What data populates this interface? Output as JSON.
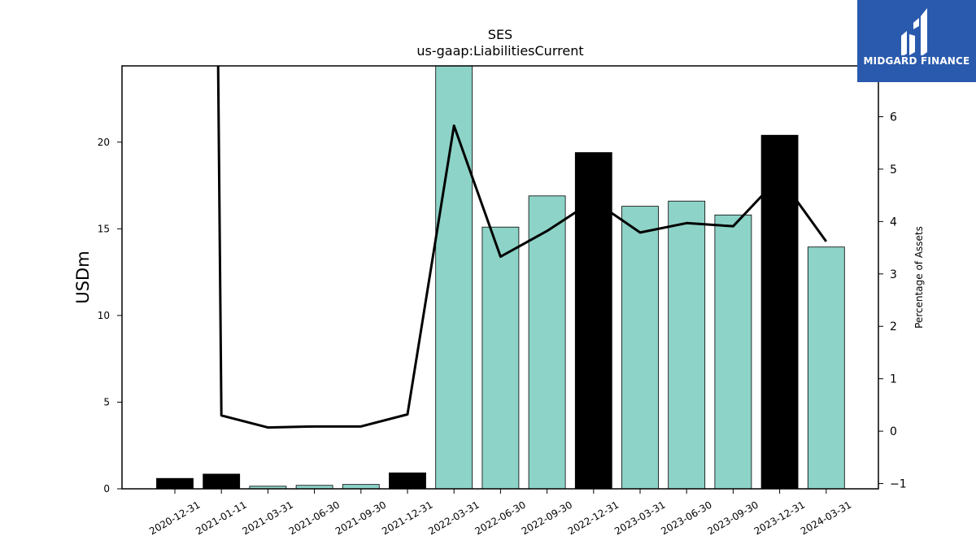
{
  "chart_data": {
    "type": "bar+line",
    "title": "SES",
    "subtitle": "us-gaap:LiabilitiesCurrent",
    "ylabel_left": "USDm",
    "ylabel_right": "Percentage of Assets",
    "categories": [
      "2020-12-31",
      "2021-01-11",
      "2021-03-31",
      "2021-06-30",
      "2021-09-30",
      "2021-12-31",
      "2022-03-31",
      "2022-06-30",
      "2022-09-30",
      "2022-12-31",
      "2023-03-31",
      "2023-06-30",
      "2023-09-30",
      "2023-12-31",
      "2024-03-31"
    ],
    "bars": {
      "name": "USDm",
      "values": [
        0.6,
        0.85,
        0.15,
        0.2,
        0.25,
        0.92,
        24.5,
        15.1,
        16.9,
        19.4,
        16.3,
        16.6,
        15.8,
        20.4,
        13.95
      ],
      "colors": [
        "#000000",
        "#000000",
        "#8dd3c7",
        "#8dd3c7",
        "#8dd3c7",
        "#000000",
        "#8dd3c7",
        "#8dd3c7",
        "#8dd3c7",
        "#000000",
        "#8dd3c7",
        "#8dd3c7",
        "#8dd3c7",
        "#000000",
        "#8dd3c7"
      ]
    },
    "line": {
      "name": "Percentage of Assets",
      "values": [
        null,
        0.3,
        0.07,
        0.09,
        0.09,
        0.32,
        5.83,
        3.33,
        3.82,
        4.4,
        3.79,
        3.97,
        3.91,
        4.85,
        3.62
      ],
      "start_above_top": true,
      "color": "#000000"
    },
    "ylim_left": [
      0,
      24.4
    ],
    "yticks_left": [
      0,
      5,
      10,
      15,
      20
    ],
    "ylim_right": [
      -1.1,
      6.97
    ],
    "yticks_right": [
      -1,
      0,
      1,
      2,
      3,
      4,
      5,
      6
    ],
    "grid": false
  },
  "logo": {
    "text": "MIDGARD FINANCE",
    "bg": "#2a5aad"
  }
}
